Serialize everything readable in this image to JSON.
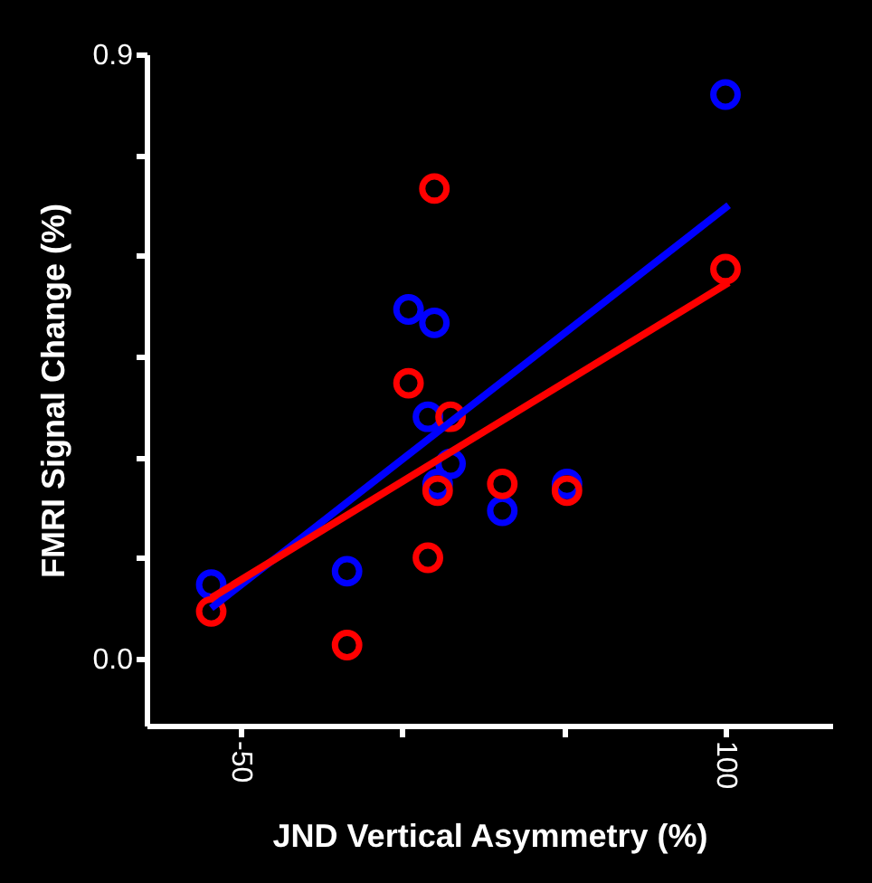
{
  "chart_data": {
    "type": "scatter",
    "xlabel": "JND Vertical Asymmetry (%)",
    "ylabel": "FMRI Signal Change (%)",
    "xlim": [
      -79,
      133
    ],
    "ylim": [
      -0.1,
      0.9
    ],
    "xticks": [
      -50,
      {
        "value": 0,
        "label": null
      },
      {
        "value": 50,
        "label": null
      },
      100
    ],
    "yticks": [
      {
        "value": 0,
        "label": "0.0"
      },
      {
        "value": 0.15,
        "label": null
      },
      {
        "value": 0.3,
        "label": null
      },
      {
        "value": 0.45,
        "label": null
      },
      {
        "value": 0.6,
        "label": null
      },
      {
        "value": 0.75,
        "label": null
      },
      0.9
    ],
    "grid": false,
    "legend": false,
    "marker": "circle",
    "series": [
      {
        "color": "#0000ff",
        "x": [
          -59,
          -17,
          2,
          10,
          8,
          15,
          11,
          31,
          51,
          100
        ],
        "values": [
          0.11,
          0.13,
          0.52,
          0.5,
          0.36,
          0.29,
          0.26,
          0.22,
          0.26,
          0.84
        ]
      },
      {
        "color": "#ff0000",
        "x": [
          -59,
          -17,
          10,
          2,
          15,
          11,
          8,
          31,
          51,
          100
        ],
        "values": [
          0.07,
          0.02,
          0.7,
          0.41,
          0.36,
          0.25,
          0.15,
          0.26,
          0.25,
          0.58
        ]
      },
      {
        "type": "line",
        "color": "#0000ff",
        "marker": "none",
        "x": [
          -59,
          101
        ],
        "values": [
          0.075,
          0.675
        ]
      },
      {
        "type": "line",
        "color": "#ff0000",
        "marker": "none",
        "x": [
          -59,
          101
        ],
        "values": [
          0.09,
          0.56
        ]
      }
    ]
  }
}
